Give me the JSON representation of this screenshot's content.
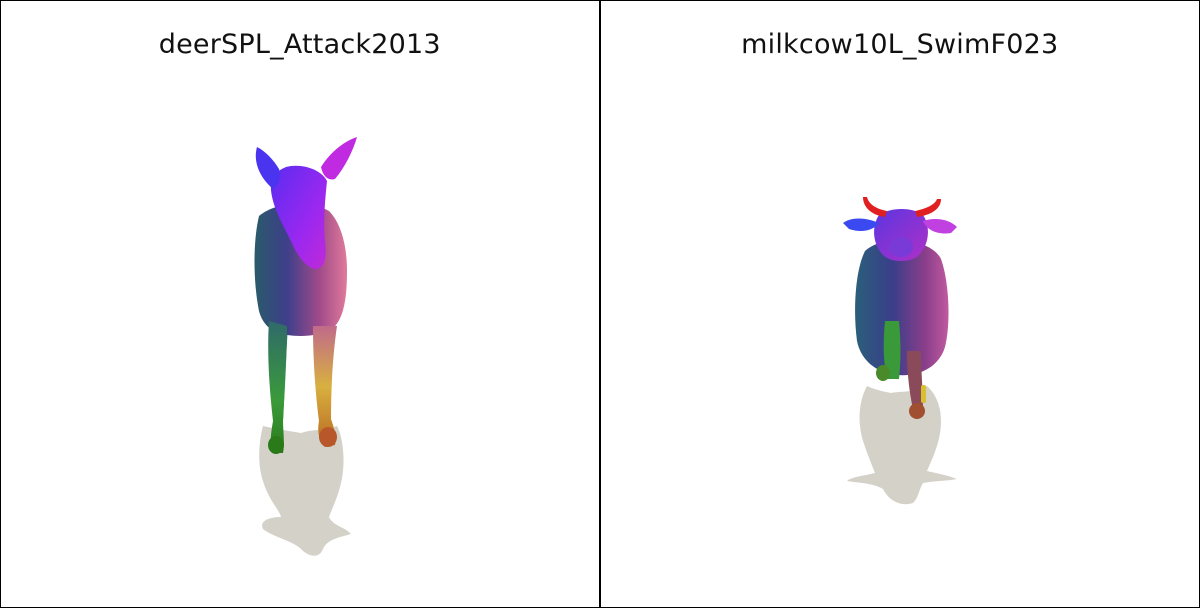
{
  "panels": [
    {
      "title": "deerSPL_Attack2013",
      "subject": "deer-mesh"
    },
    {
      "title": "milkcow10L_SwimF023",
      "subject": "cow-mesh"
    }
  ],
  "colors": {
    "shadow": "#d4d1c8",
    "border": "#000000",
    "background": "#ffffff"
  }
}
